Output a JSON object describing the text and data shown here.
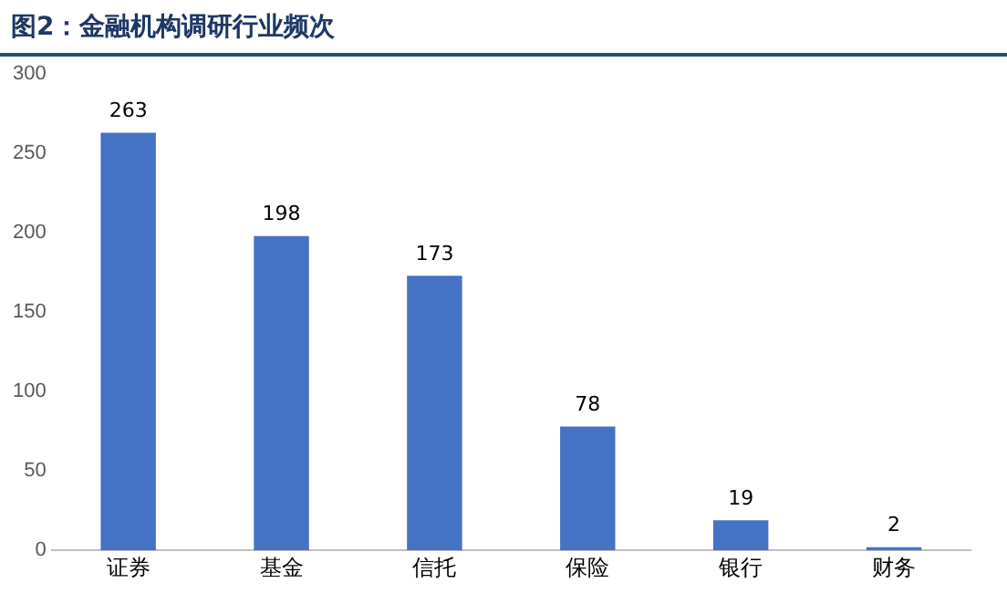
{
  "chart_data": {
    "type": "bar",
    "title": "图2：金融机构调研行业频次",
    "categories": [
      "证券",
      "基金",
      "信托",
      "保险",
      "银行",
      "财务"
    ],
    "values": [
      263,
      198,
      173,
      78,
      19,
      2
    ],
    "color": "#4472c4",
    "ylim": [
      0,
      300
    ],
    "yticks": [
      0,
      50,
      100,
      150,
      200,
      250,
      300
    ],
    "data_labels": true,
    "grid": false,
    "legend": false
  }
}
